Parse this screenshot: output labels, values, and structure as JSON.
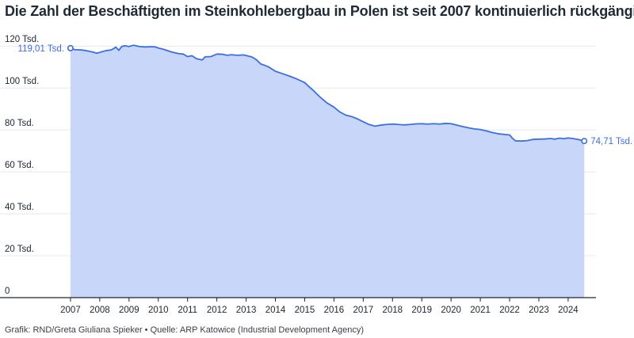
{
  "title": "Die Zahl der Beschäftigten im Steinkohlebergbau in Polen ist seit 2007 kontinuierlich rückgängig",
  "source": "Grafik: RND/Greta Giuliana Spieker • Quelle: ARP Katowice (Industrial Development Agency)",
  "colors": {
    "line": "#3b6fe0",
    "area": "#c8d7f9",
    "grid": "#e6e8eb",
    "axis": "#1d2530"
  },
  "chart_data": {
    "type": "area",
    "title": "Die Zahl der Beschäftigten im Steinkohlebergbau in Polen ist seit 2007 kontinuierlich rückgängig",
    "xlabel": "",
    "ylabel": "",
    "unit": "Tsd.",
    "xlim": [
      2006.0,
      2024.95
    ],
    "ylim": [
      0,
      125
    ],
    "grid": true,
    "y_ticks": [
      {
        "value": 0,
        "label": "0"
      },
      {
        "value": 20,
        "label": "20 Tsd."
      },
      {
        "value": 40,
        "label": "40 Tsd."
      },
      {
        "value": 60,
        "label": "60 Tsd."
      },
      {
        "value": 80,
        "label": "80 Tsd."
      },
      {
        "value": 100,
        "label": "100 Tsd."
      },
      {
        "value": 120,
        "label": "120 Tsd."
      }
    ],
    "x_ticks": [
      {
        "value": 2007,
        "label": "2007"
      },
      {
        "value": 2008,
        "label": "2008"
      },
      {
        "value": 2009,
        "label": "2009"
      },
      {
        "value": 2010,
        "label": "2010"
      },
      {
        "value": 2011,
        "label": "2011"
      },
      {
        "value": 2012,
        "label": "2012"
      },
      {
        "value": 2013,
        "label": "2013"
      },
      {
        "value": 2014,
        "label": "2014"
      },
      {
        "value": 2015,
        "label": "2015"
      },
      {
        "value": 2016,
        "label": "2016"
      },
      {
        "value": 2017,
        "label": "2017"
      },
      {
        "value": 2018,
        "label": "2018"
      },
      {
        "value": 2019,
        "label": "2019"
      },
      {
        "value": 2020,
        "label": "2020"
      },
      {
        "value": 2021,
        "label": "2021"
      },
      {
        "value": 2022,
        "label": "2022"
      },
      {
        "value": 2023,
        "label": "2023"
      },
      {
        "value": 2024,
        "label": "2024"
      }
    ],
    "series": [
      {
        "points": [
          [
            2007.0,
            119.01
          ],
          [
            2007.15,
            118.3
          ],
          [
            2007.35,
            118.2
          ],
          [
            2007.55,
            117.8
          ],
          [
            2007.75,
            117.2
          ],
          [
            2007.9,
            116.6
          ],
          [
            2008.0,
            117.0
          ],
          [
            2008.2,
            117.8
          ],
          [
            2008.4,
            118.2
          ],
          [
            2008.55,
            119.5
          ],
          [
            2008.65,
            118.0
          ],
          [
            2008.75,
            119.8
          ],
          [
            2008.85,
            120.2
          ],
          [
            2009.0,
            119.8
          ],
          [
            2009.15,
            120.4
          ],
          [
            2009.35,
            119.8
          ],
          [
            2009.55,
            119.6
          ],
          [
            2009.75,
            119.7
          ],
          [
            2009.9,
            119.6
          ],
          [
            2010.0,
            119.1
          ],
          [
            2010.2,
            118.4
          ],
          [
            2010.45,
            117.2
          ],
          [
            2010.7,
            116.4
          ],
          [
            2010.85,
            116.2
          ],
          [
            2011.0,
            115.0
          ],
          [
            2011.15,
            115.4
          ],
          [
            2011.3,
            114.0
          ],
          [
            2011.5,
            113.4
          ],
          [
            2011.6,
            114.9
          ],
          [
            2011.8,
            115.0
          ],
          [
            2012.0,
            116.2
          ],
          [
            2012.2,
            116.1
          ],
          [
            2012.35,
            115.6
          ],
          [
            2012.5,
            115.9
          ],
          [
            2012.7,
            115.6
          ],
          [
            2012.9,
            115.8
          ],
          [
            2013.0,
            115.5
          ],
          [
            2013.2,
            114.8
          ],
          [
            2013.35,
            113.5
          ],
          [
            2013.5,
            111.5
          ],
          [
            2013.75,
            110.2
          ],
          [
            2014.0,
            108.0
          ],
          [
            2014.25,
            106.8
          ],
          [
            2014.5,
            105.6
          ],
          [
            2014.75,
            104.2
          ],
          [
            2015.0,
            102.6
          ],
          [
            2015.15,
            100.6
          ],
          [
            2015.3,
            98.8
          ],
          [
            2015.5,
            96.0
          ],
          [
            2015.75,
            93.0
          ],
          [
            2016.0,
            90.9
          ],
          [
            2016.2,
            88.6
          ],
          [
            2016.4,
            87.1
          ],
          [
            2016.6,
            86.4
          ],
          [
            2016.8,
            85.3
          ],
          [
            2017.0,
            83.9
          ],
          [
            2017.2,
            82.6
          ],
          [
            2017.4,
            81.8
          ],
          [
            2017.6,
            82.3
          ],
          [
            2017.8,
            82.6
          ],
          [
            2018.0,
            82.8
          ],
          [
            2018.2,
            82.6
          ],
          [
            2018.4,
            82.4
          ],
          [
            2018.6,
            82.6
          ],
          [
            2018.8,
            82.9
          ],
          [
            2019.0,
            83.0
          ],
          [
            2019.2,
            82.8
          ],
          [
            2019.4,
            83.0
          ],
          [
            2019.6,
            82.8
          ],
          [
            2019.8,
            83.1
          ],
          [
            2020.0,
            83.0
          ],
          [
            2020.2,
            82.3
          ],
          [
            2020.4,
            81.6
          ],
          [
            2020.6,
            81.0
          ],
          [
            2020.8,
            80.5
          ],
          [
            2021.0,
            80.2
          ],
          [
            2021.2,
            79.6
          ],
          [
            2021.4,
            78.8
          ],
          [
            2021.6,
            78.2
          ],
          [
            2021.8,
            77.9
          ],
          [
            2022.0,
            77.6
          ],
          [
            2022.1,
            76.0
          ],
          [
            2022.2,
            74.8
          ],
          [
            2022.4,
            74.7
          ],
          [
            2022.6,
            74.9
          ],
          [
            2022.8,
            75.5
          ],
          [
            2023.0,
            75.6
          ],
          [
            2023.2,
            75.7
          ],
          [
            2023.4,
            75.9
          ],
          [
            2023.55,
            75.6
          ],
          [
            2023.7,
            76.1
          ],
          [
            2023.85,
            75.8
          ],
          [
            2024.0,
            76.2
          ],
          [
            2024.2,
            75.8
          ],
          [
            2024.4,
            75.3
          ],
          [
            2024.55,
            74.71
          ]
        ]
      }
    ],
    "annotations": [
      {
        "label": "119,01 Tsd.",
        "x": 2007.0,
        "y": 119.01,
        "side": "left"
      },
      {
        "label": "74,71 Tsd.",
        "x": 2024.55,
        "y": 74.71,
        "side": "right"
      }
    ]
  }
}
